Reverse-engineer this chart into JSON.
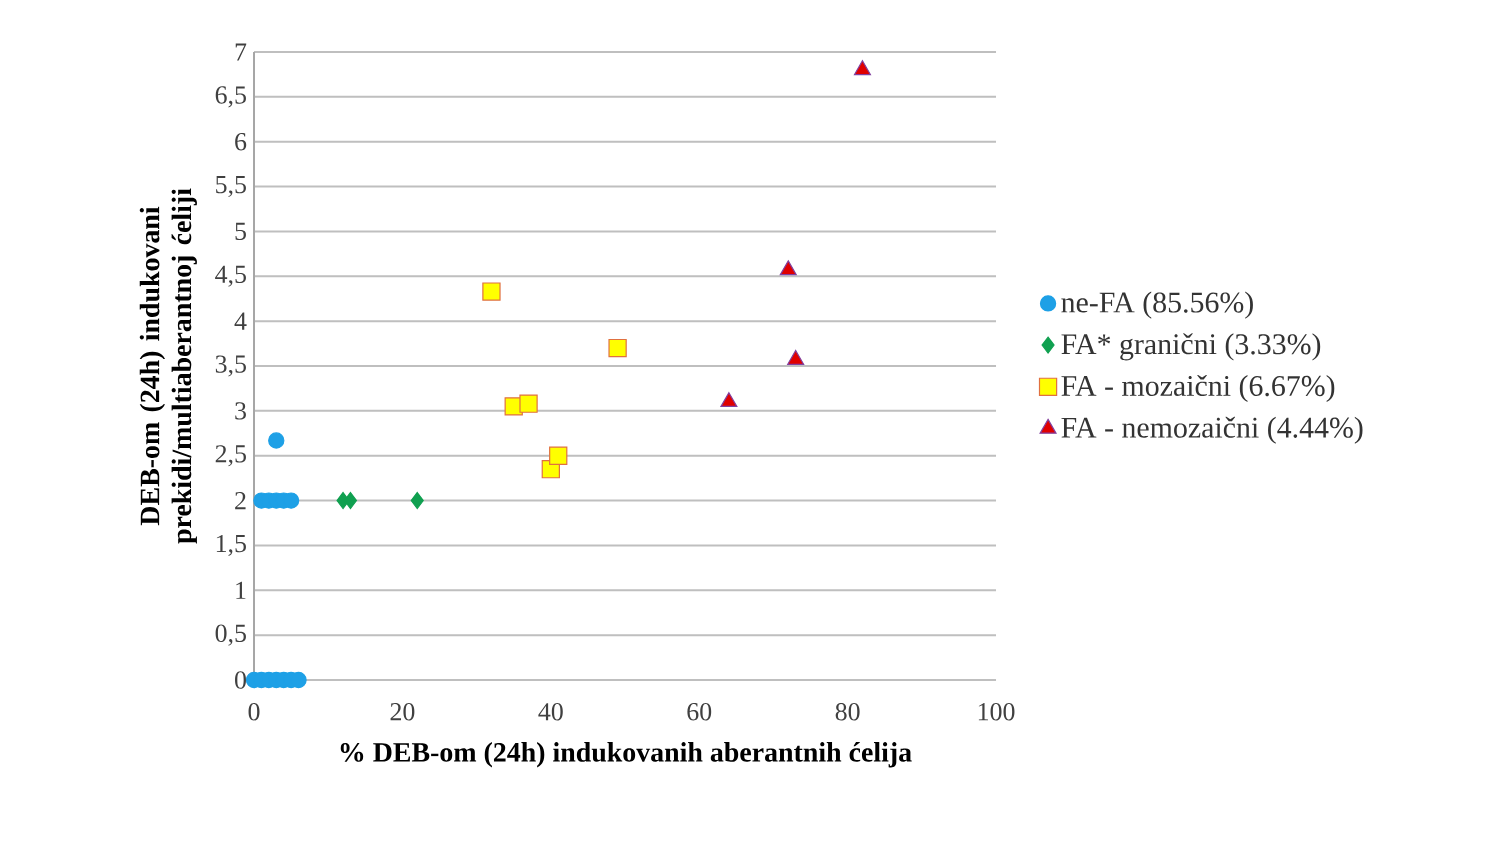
{
  "chart_data": {
    "type": "scatter",
    "xlabel": "% DEB-om (24h) indukovanih aberantnih ćelija",
    "ylabel": "DEB-om (24h) indukovani prekidi/multiaberantnoj ćeliji",
    "xlim": [
      0,
      100
    ],
    "xticks": [
      0,
      20,
      40,
      60,
      80,
      100
    ],
    "ylim": [
      0,
      7
    ],
    "yticks": [
      0,
      {
        "value": 0.5,
        "label": "0,5"
      },
      1,
      {
        "value": 1.5,
        "label": "1,5"
      },
      2,
      {
        "value": 2.5,
        "label": "2,5"
      },
      3,
      {
        "value": 3.5,
        "label": "3,5"
      },
      4,
      {
        "value": 4.5,
        "label": "4,5"
      },
      5,
      {
        "value": 5.5,
        "label": "5,5"
      },
      6,
      {
        "value": 6.5,
        "label": "6,5"
      },
      7
    ],
    "grid": "y",
    "legend": "right",
    "series": [
      {
        "name": "ne-FA (85.56%)",
        "color": "#1ea0e6",
        "marker": "circle",
        "x": [
          0,
          1,
          2,
          3,
          4,
          5,
          6,
          1,
          2,
          3,
          4,
          5,
          3
        ],
        "values": [
          0,
          0,
          0,
          0,
          0,
          0,
          0,
          2,
          2,
          2,
          2,
          2,
          2.67
        ]
      },
      {
        "name": "FA* granični (3.33%)",
        "color": "#10a050",
        "marker": "diamond",
        "x": [
          12,
          13,
          22
        ],
        "values": [
          2,
          2,
          2
        ]
      },
      {
        "name": "FA - mozaični (6.67%)",
        "color": "#ffff00",
        "marker": "square",
        "x": [
          32,
          35,
          37,
          49,
          40,
          41
        ],
        "values": [
          4.33,
          3.05,
          3.08,
          3.7,
          2.35,
          2.5
        ]
      },
      {
        "name": "FA - nemozaični (4.44%)",
        "color": "#e00000",
        "marker": "triangle",
        "x": [
          82,
          72,
          73,
          64
        ],
        "values": [
          6.8,
          4.57,
          3.57,
          3.1
        ]
      }
    ]
  }
}
